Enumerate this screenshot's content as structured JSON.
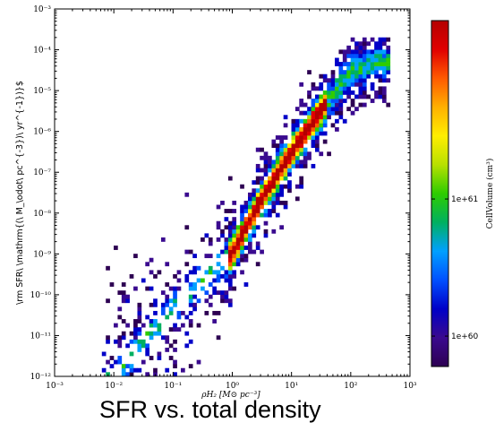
{
  "caption": "SFR vs. total density",
  "chart_data": {
    "type": "heatmap",
    "title": "",
    "xlabel": "ρH₂ [M⊙ pc⁻³]",
    "ylabel": "\\rm SFR\\ \\mathrm{(\\ M_\\odot\\ pc^{-3})\\ yr^{-1})}$",
    "x_scale": "log",
    "y_scale": "log",
    "xlim": [
      0.001,
      1000
    ],
    "ylim": [
      1e-12,
      0.001
    ],
    "x_ticks": [
      "10⁻³",
      "10⁻²",
      "10⁻¹",
      "10⁰",
      "10¹",
      "10²",
      "10³"
    ],
    "y_ticks": [
      "10⁻¹²",
      "10⁻¹¹",
      "10⁻¹⁰",
      "10⁻⁹",
      "10⁻⁸",
      "10⁻⁷",
      "10⁻⁶",
      "10⁻⁵",
      "10⁻⁴",
      "10⁻³"
    ],
    "grid": false,
    "colorbar": {
      "label": "CellVolume (cm³)",
      "scale": "log",
      "range": [
        6e+59,
        2e+62
      ],
      "tick_values": [
        1e+60,
        1e+61
      ],
      "tick_labels": [
        "1e+60",
        "1e+61"
      ],
      "colormap": [
        "#2d0052",
        "#3a0a8f",
        "#0000c8",
        "#0050ff",
        "#00a0ff",
        "#00b060",
        "#2ecc00",
        "#b8e000",
        "#ffee00",
        "#ffb000",
        "#ff5a00",
        "#e00000",
        "#b40000"
      ]
    },
    "density_ridge": {
      "description": "bin density follows a log-linear relation from the low-density tail to the high-density upper branch",
      "points": [
        [
          0.01,
          1e-12
        ],
        [
          0.1,
          5e-11
        ],
        [
          1,
          1e-09
        ],
        [
          3,
          2e-08
        ],
        [
          10,
          3e-07
        ],
        [
          30,
          3e-06
        ],
        [
          100,
          3e-05
        ],
        [
          300,
          5e-05
        ]
      ]
    }
  }
}
